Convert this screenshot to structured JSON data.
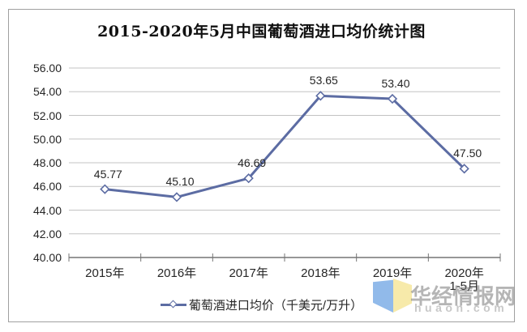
{
  "title": "2015-2020年5月中国葡萄酒进口均价统计图",
  "legend": {
    "label": "葡萄酒进口均价（千美元/万升）"
  },
  "watermark": {
    "brand": "华经情报网",
    "domain": "huaon.com"
  },
  "colors": {
    "line": "#5c6ca3",
    "marker_fill": "#ffffff",
    "grid": "#c3c3c3",
    "axis": "#757575",
    "border": "#a0a0a0",
    "text": "#262626",
    "logo_blue": "#8cb7e9",
    "logo_yellow": "#f7e9a6"
  },
  "chart_data": {
    "type": "line",
    "title": "2015-2020年5月中国葡萄酒进口均价统计图",
    "categories": [
      "2015年",
      "2016年",
      "2017年",
      "2018年",
      "2019年",
      "2020年"
    ],
    "last_category_sublabel": "1-5月",
    "values": [
      45.77,
      45.1,
      46.69,
      53.65,
      53.4,
      47.5
    ],
    "data_labels": [
      "45.77",
      "45.10",
      "46.69",
      "53.65",
      "53.40",
      "47.50"
    ],
    "series_name": "葡萄酒进口均价（千美元/万升）",
    "xlabel": "",
    "ylabel": "",
    "ylim": [
      40,
      56
    ],
    "ytick_step": 2,
    "yticks": [
      "56.00",
      "54.00",
      "52.00",
      "50.00",
      "48.00",
      "46.00",
      "44.00",
      "42.00",
      "40.00"
    ],
    "grid": true,
    "marker": "diamond",
    "legend_position": "bottom"
  }
}
